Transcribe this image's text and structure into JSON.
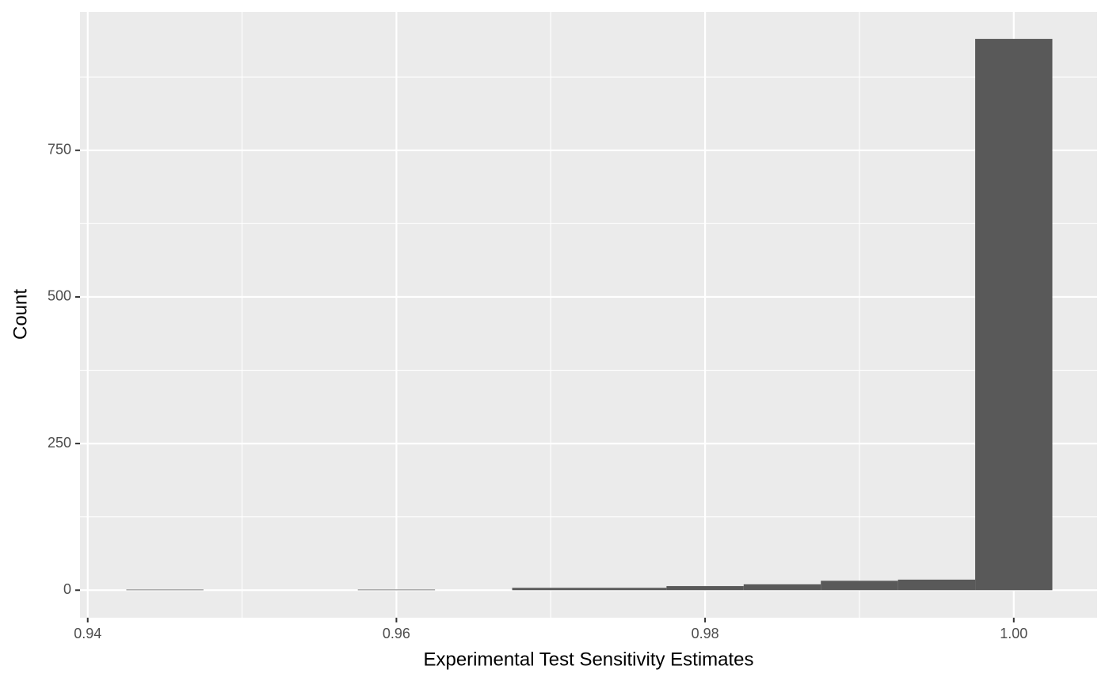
{
  "chart_data": {
    "type": "histogram",
    "x_label": "Experimental Test Sensitivity Estimates",
    "y_label": "Count",
    "bins": [
      0.9425,
      0.9475,
      0.9525,
      0.9575,
      0.9625,
      0.9675,
      0.9725,
      0.9775,
      0.9825,
      0.9875,
      0.9925,
      0.9975,
      1.0025
    ],
    "values": [
      1,
      0,
      0,
      1,
      0,
      4,
      4,
      7,
      10,
      16,
      18,
      940
    ],
    "color": "#595959",
    "xlim": [
      0.9395,
      1.0054
    ],
    "ylim": [
      -46.9,
      986
    ],
    "xticks": [
      0.94,
      0.96,
      0.98,
      {
        "value": 1,
        "label": "1.00"
      }
    ],
    "yticks": [
      0,
      250,
      500,
      750
    ],
    "x_minor_ticks": [
      0.95,
      0.97,
      0.99
    ],
    "y_minor_ticks": [
      125,
      375,
      625,
      875
    ],
    "grid": true
  }
}
